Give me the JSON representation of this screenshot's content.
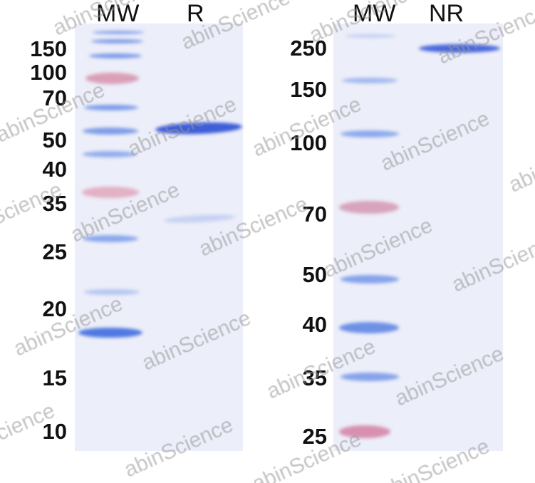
{
  "left_gel": {
    "lanes": [
      "MW",
      "R"
    ],
    "markers_kda": [
      "150",
      "100",
      "70",
      "50",
      "40",
      "35",
      "25",
      "20",
      "15",
      "10"
    ],
    "sample_bands_kda": [
      "~50 (strong)",
      "~28 (faint)"
    ]
  },
  "right_gel": {
    "lanes": [
      "MW",
      "NR"
    ],
    "markers_kda": [
      "250",
      "150",
      "100",
      "70",
      "50",
      "40",
      "35",
      "25"
    ],
    "sample_bands_kda": [
      "~250 (strong)"
    ]
  },
  "watermark": "abinScience",
  "colors": {
    "gel": "#eceef9",
    "blue_band": "#5b7fe0",
    "pink_band": "#d48aa8",
    "sample_band": "#3f5ed8"
  }
}
